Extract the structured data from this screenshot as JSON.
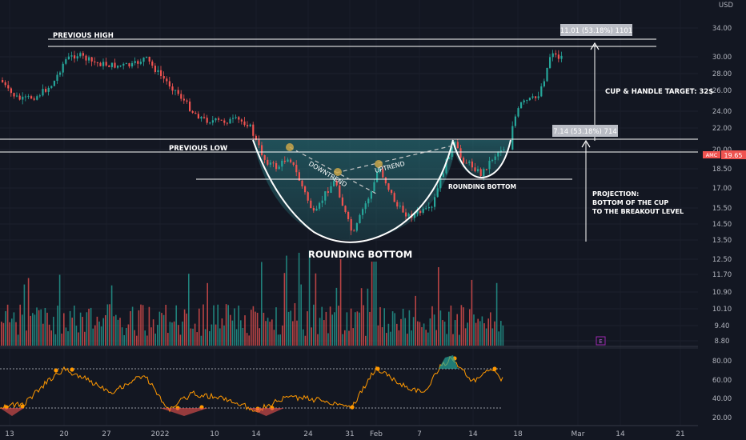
{
  "chart_data": {
    "type": "candlestick",
    "symbol": "AMC",
    "currency_label": "USD",
    "price_ticks": [
      "34.00",
      "30.00",
      "28.00",
      "26.00",
      "24.00",
      "22.00",
      "20.00",
      "18.50",
      "17.00",
      "15.50",
      "14.50",
      "13.50",
      "12.50",
      "11.70",
      "10.90",
      "10.10",
      "9.40",
      "8.80"
    ],
    "price_ylim": [
      8.8,
      34
    ],
    "rsi_ticks": [
      "80.00",
      "60.00",
      "40.00",
      "20.00"
    ],
    "rsi_bands": [
      70,
      30
    ],
    "x_ticks": [
      "13",
      "20",
      "27",
      "2022",
      "10",
      "14",
      "24",
      "31",
      "Feb",
      "7",
      "14",
      "18",
      "Mar",
      "14",
      "21"
    ],
    "last_price": "19.65",
    "levels": {
      "previous_high": 32.3,
      "previous_low": 20.7,
      "neckline": 17.5,
      "measure_top": 20.7
    },
    "annotations": {
      "previous_high": "PREVIOUS HIGH",
      "previous_low": "PREVIOUS LOW",
      "rounding_bottom_main": "ROUNDING BOTTOM",
      "rounding_bottom_small": "ROUNDING BOTTOM",
      "downtrend": "DOWNTREND",
      "uptrend": "UPTREND",
      "target": "CUP & HANDLE TARGET: 32$",
      "projection_1": "PROJECTION:",
      "projection_2": "BOTTOM OF THE CUP",
      "projection_3": "TO THE BREAKOUT LEVEL",
      "measure_upper": "11.01 (53.18%) 1101",
      "measure_lower": "7.14 (53.18%) 714",
      "event_marker": "E"
    }
  },
  "colors": {
    "background": "#131722",
    "up": "#26a69a",
    "down": "#ef5350",
    "rsi_line": "#ff9800",
    "price_label": "#ef5350",
    "white_lines": "#ffffff",
    "highlight_fill": "#2a7d84",
    "event": "#9c27b0"
  }
}
